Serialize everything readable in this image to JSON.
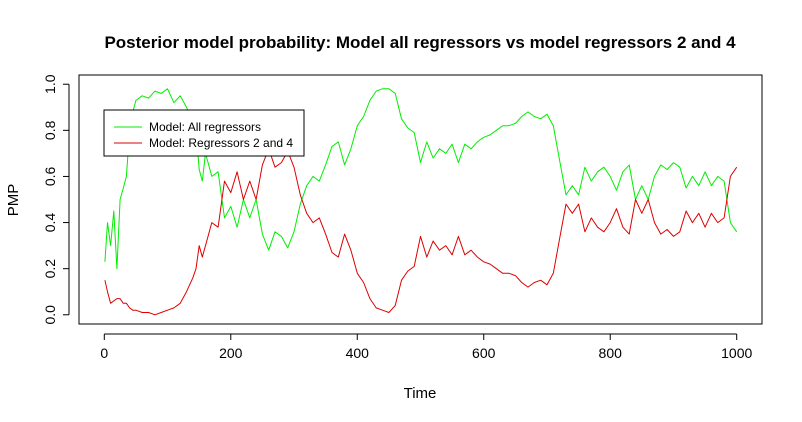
{
  "chart_data": {
    "type": "line",
    "title": "Posterior model probability: Model all regressors vs model regressors 2 and 4",
    "xlabel": "Time",
    "ylabel": "PMP",
    "xlim": [
      -40,
      1040
    ],
    "ylim": [
      -0.04,
      1.04
    ],
    "xticks": [
      0,
      200,
      400,
      600,
      800,
      1000
    ],
    "xtick_labels": [
      "0",
      "200",
      "400",
      "600",
      "800",
      "1000"
    ],
    "yticks": [
      0.0,
      0.2,
      0.4,
      0.6,
      0.8,
      1.0
    ],
    "ytick_labels": [
      "0.0",
      "0.2",
      "0.4",
      "0.6",
      "0.8",
      "1.0"
    ],
    "grid": false,
    "legend_position": "top-left",
    "colors": {
      "all": "#00ee00",
      "r24": "#dd0000"
    },
    "legend": [
      "Model: All regressors",
      "Model: Regressors 2 and 4"
    ],
    "series": [
      {
        "name": "Model: All regressors",
        "color": "#00ee00",
        "x": [
          1,
          5,
          10,
          15,
          20,
          25,
          30,
          35,
          40,
          45,
          50,
          60,
          70,
          80,
          90,
          100,
          110,
          120,
          130,
          140,
          145,
          150,
          155,
          160,
          170,
          180,
          190,
          200,
          210,
          220,
          230,
          240,
          250,
          260,
          270,
          280,
          290,
          300,
          310,
          320,
          330,
          340,
          350,
          360,
          370,
          380,
          390,
          400,
          410,
          420,
          430,
          440,
          450,
          460,
          470,
          480,
          490,
          500,
          510,
          520,
          530,
          540,
          550,
          560,
          570,
          580,
          590,
          600,
          610,
          620,
          630,
          640,
          650,
          660,
          670,
          680,
          690,
          700,
          710,
          720,
          730,
          740,
          750,
          760,
          770,
          780,
          790,
          800,
          810,
          820,
          830,
          840,
          850,
          860,
          870,
          880,
          890,
          900,
          910,
          920,
          930,
          940,
          950,
          960,
          970,
          980,
          990,
          1000
        ],
        "values": [
          0.23,
          0.4,
          0.3,
          0.45,
          0.2,
          0.5,
          0.55,
          0.6,
          0.8,
          0.88,
          0.93,
          0.95,
          0.94,
          0.97,
          0.96,
          0.98,
          0.92,
          0.95,
          0.9,
          0.84,
          0.8,
          0.63,
          0.58,
          0.7,
          0.6,
          0.62,
          0.42,
          0.47,
          0.38,
          0.5,
          0.42,
          0.5,
          0.35,
          0.28,
          0.36,
          0.34,
          0.29,
          0.36,
          0.48,
          0.56,
          0.6,
          0.58,
          0.65,
          0.73,
          0.75,
          0.65,
          0.72,
          0.82,
          0.86,
          0.93,
          0.97,
          0.98,
          0.98,
          0.96,
          0.85,
          0.81,
          0.79,
          0.66,
          0.75,
          0.68,
          0.72,
          0.7,
          0.74,
          0.66,
          0.74,
          0.72,
          0.75,
          0.77,
          0.78,
          0.8,
          0.82,
          0.82,
          0.83,
          0.86,
          0.88,
          0.86,
          0.85,
          0.87,
          0.82,
          0.67,
          0.52,
          0.56,
          0.52,
          0.64,
          0.58,
          0.62,
          0.64,
          0.6,
          0.54,
          0.62,
          0.65,
          0.5,
          0.56,
          0.5,
          0.6,
          0.65,
          0.63,
          0.66,
          0.64,
          0.55,
          0.6,
          0.56,
          0.62,
          0.56,
          0.6,
          0.58,
          0.4,
          0.36
        ]
      },
      {
        "name": "Model: Regressors 2 and 4",
        "color": "#dd0000",
        "x": [
          1,
          5,
          10,
          15,
          20,
          25,
          30,
          35,
          40,
          45,
          50,
          60,
          70,
          80,
          90,
          100,
          110,
          120,
          130,
          140,
          145,
          150,
          155,
          160,
          170,
          180,
          190,
          200,
          210,
          220,
          230,
          240,
          250,
          260,
          270,
          280,
          290,
          300,
          310,
          320,
          330,
          340,
          350,
          360,
          370,
          380,
          390,
          400,
          410,
          420,
          430,
          440,
          450,
          460,
          470,
          480,
          490,
          500,
          510,
          520,
          530,
          540,
          550,
          560,
          570,
          580,
          590,
          600,
          610,
          620,
          630,
          640,
          650,
          660,
          670,
          680,
          690,
          700,
          710,
          720,
          730,
          740,
          750,
          760,
          770,
          780,
          790,
          800,
          810,
          820,
          830,
          840,
          850,
          860,
          870,
          880,
          890,
          900,
          910,
          920,
          930,
          940,
          950,
          960,
          970,
          980,
          990,
          1000
        ],
        "values": [
          0.15,
          0.1,
          0.05,
          0.06,
          0.07,
          0.07,
          0.05,
          0.05,
          0.03,
          0.02,
          0.02,
          0.01,
          0.01,
          0.0,
          0.01,
          0.02,
          0.03,
          0.05,
          0.1,
          0.16,
          0.2,
          0.3,
          0.25,
          0.3,
          0.4,
          0.38,
          0.58,
          0.53,
          0.62,
          0.5,
          0.58,
          0.5,
          0.65,
          0.72,
          0.64,
          0.66,
          0.71,
          0.64,
          0.52,
          0.44,
          0.4,
          0.42,
          0.35,
          0.27,
          0.25,
          0.35,
          0.28,
          0.18,
          0.14,
          0.07,
          0.03,
          0.02,
          0.01,
          0.04,
          0.15,
          0.19,
          0.21,
          0.34,
          0.25,
          0.32,
          0.28,
          0.3,
          0.26,
          0.34,
          0.26,
          0.28,
          0.25,
          0.23,
          0.22,
          0.2,
          0.18,
          0.18,
          0.17,
          0.14,
          0.12,
          0.14,
          0.15,
          0.13,
          0.18,
          0.33,
          0.48,
          0.44,
          0.48,
          0.36,
          0.42,
          0.38,
          0.36,
          0.4,
          0.46,
          0.38,
          0.35,
          0.5,
          0.44,
          0.5,
          0.4,
          0.35,
          0.37,
          0.34,
          0.36,
          0.45,
          0.4,
          0.44,
          0.38,
          0.44,
          0.4,
          0.42,
          0.6,
          0.64
        ]
      }
    ]
  }
}
